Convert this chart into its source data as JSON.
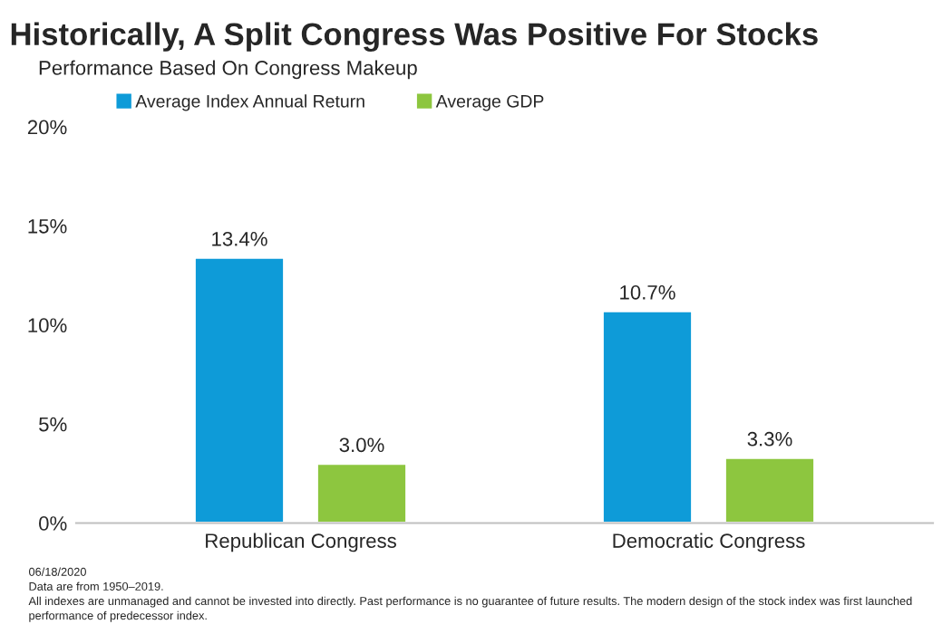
{
  "chart_data": {
    "type": "bar",
    "title": "Historically, A Split Congress Was Positive For Stocks",
    "subtitle": "Performance Based On Congress Makeup",
    "categories": [
      "Republican Congress",
      "Democratic Congress"
    ],
    "series": [
      {
        "name": "Average Index Annual Return",
        "color": "#0e9bd8",
        "values": [
          13.4,
          10.7
        ],
        "value_labels": [
          "13.4%",
          "10.7%"
        ]
      },
      {
        "name": "Average GDP",
        "color": "#8dc63f",
        "values": [
          3.0,
          3.3
        ],
        "value_labels": [
          "3.0%",
          "3.3%"
        ]
      }
    ],
    "ylim": [
      0,
      20
    ],
    "yticks": [
      {
        "value": 0,
        "label": "0%"
      },
      {
        "value": 5,
        "label": "5%"
      },
      {
        "value": 10,
        "label": "10%"
      },
      {
        "value": 15,
        "label": "15%"
      },
      {
        "value": 20,
        "label": "20%"
      }
    ],
    "grid": false,
    "legend": "top left",
    "annotations": [
      "06/18/2020",
      "Data are from 1950–2019.",
      "All indexes are unmanaged and cannot be invested into directly. Past performance is no guarantee of future results. The modern design of the stock index was first launched",
      "performance of predecessor index."
    ]
  }
}
